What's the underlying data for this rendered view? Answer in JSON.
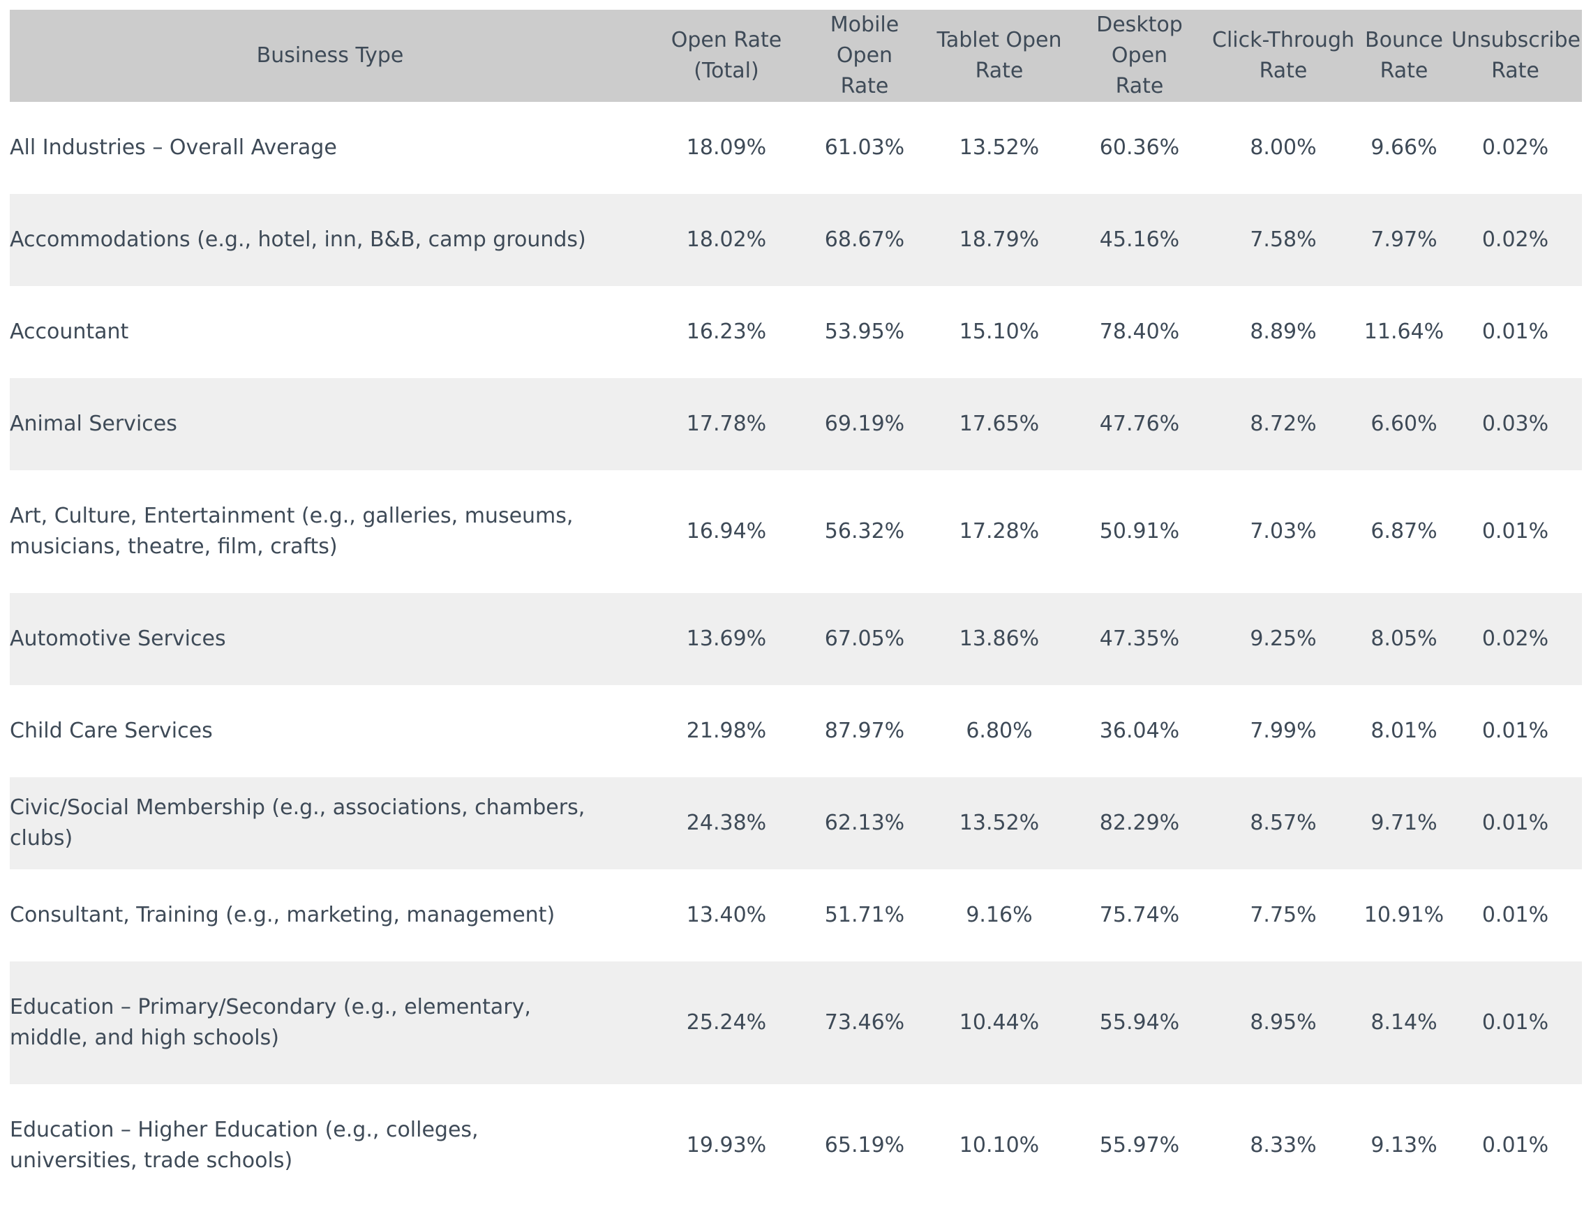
{
  "table": {
    "headers": [
      {
        "line1": "Business Type",
        "line2": ""
      },
      {
        "line1": "Open Rate",
        "line2": "(Total)"
      },
      {
        "line1": "Mobile Open",
        "line2": "Rate"
      },
      {
        "line1": "Tablet Open",
        "line2": "Rate"
      },
      {
        "line1": "Desktop Open",
        "line2": "Rate"
      },
      {
        "line1": "Click-Through",
        "line2": "Rate"
      },
      {
        "line1": "Bounce",
        "line2": "Rate"
      },
      {
        "line1": "Unsubscribe",
        "line2": "Rate"
      }
    ],
    "rows": [
      {
        "type": "All Industries – Overall Average",
        "open": "18.09%",
        "mobile": "61.03%",
        "tablet": "13.52%",
        "desktop": "60.36%",
        "ctr": "8.00%",
        "bounce": "9.66%",
        "unsub": "0.02%"
      },
      {
        "type": "Accommodations (e.g., hotel, inn, B&B, camp grounds)",
        "open": "18.02%",
        "mobile": "68.67%",
        "tablet": "18.79%",
        "desktop": "45.16%",
        "ctr": "7.58%",
        "bounce": "7.97%",
        "unsub": "0.02%"
      },
      {
        "type": "Accountant",
        "open": "16.23%",
        "mobile": "53.95%",
        "tablet": "15.10%",
        "desktop": "78.40%",
        "ctr": "8.89%",
        "bounce": "11.64%",
        "unsub": "0.01%"
      },
      {
        "type": "Animal Services",
        "open": "17.78%",
        "mobile": "69.19%",
        "tablet": "17.65%",
        "desktop": "47.76%",
        "ctr": "8.72%",
        "bounce": "6.60%",
        "unsub": "0.03%"
      },
      {
        "type": "Art, Culture, Entertainment (e.g., galleries, museums, musicians, theatre, film, crafts)",
        "open": "16.94%",
        "mobile": "56.32%",
        "tablet": "17.28%",
        "desktop": "50.91%",
        "ctr": "7.03%",
        "bounce": "6.87%",
        "unsub": "0.01%"
      },
      {
        "type": "Automotive Services",
        "open": "13.69%",
        "mobile": "67.05%",
        "tablet": "13.86%",
        "desktop": "47.35%",
        "ctr": "9.25%",
        "bounce": "8.05%",
        "unsub": "0.02%"
      },
      {
        "type": "Child Care Services",
        "open": "21.98%",
        "mobile": "87.97%",
        "tablet": "6.80%",
        "desktop": "36.04%",
        "ctr": "7.99%",
        "bounce": "8.01%",
        "unsub": "0.01%"
      },
      {
        "type": "Civic/Social Membership (e.g., associations, chambers, clubs)",
        "open": "24.38%",
        "mobile": "62.13%",
        "tablet": "13.52%",
        "desktop": "82.29%",
        "ctr": "8.57%",
        "bounce": "9.71%",
        "unsub": "0.01%"
      },
      {
        "type": "Consultant, Training (e.g., marketing, management)",
        "open": "13.40%",
        "mobile": "51.71%",
        "tablet": "9.16%",
        "desktop": "75.74%",
        "ctr": "7.75%",
        "bounce": "10.91%",
        "unsub": "0.01%"
      },
      {
        "type": "Education – Primary/Secondary (e.g., elementary, middle, and high schools)",
        "open": "25.24%",
        "mobile": "73.46%",
        "tablet": "10.44%",
        "desktop": "55.94%",
        "ctr": "8.95%",
        "bounce": "8.14%",
        "unsub": "0.01%"
      },
      {
        "type": "Education – Higher Education (e.g., colleges, universities, trade schools)",
        "open": "19.93%",
        "mobile": "65.19%",
        "tablet": "10.10%",
        "desktop": "55.97%",
        "ctr": "8.33%",
        "bounce": "9.13%",
        "unsub": "0.01%"
      }
    ]
  }
}
